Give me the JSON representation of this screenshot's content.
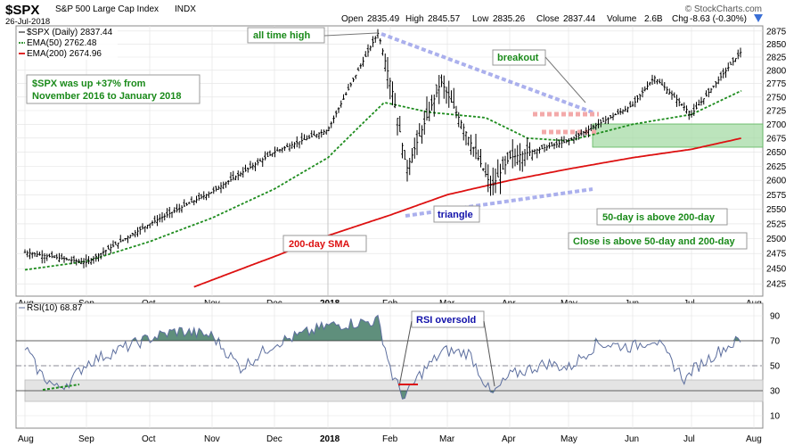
{
  "header": {
    "symbol": "$SPX",
    "name": "S&P 500 Large Cap Index",
    "exchange": "INDX",
    "date": "26-Jul-2018",
    "open_label": "Open",
    "open": "2835.49",
    "high_label": "High",
    "high": "2845.57",
    "low_label": "Low",
    "low": "2835.26",
    "close_label": "Close",
    "close": "2837.44",
    "volume_label": "Volume",
    "volume": "2.6B",
    "chg_label": "Chg",
    "chg": "-8.63 (-0.30%)",
    "watermark": "© StockCharts.com"
  },
  "legend": {
    "price": "$SPX (Daily) 2837.44",
    "ema50": "EMA(50) 2762.48",
    "ema200": "EMA(200) 2674.96",
    "rsi": "RSI(10) 68.87"
  },
  "annotations": {
    "all_time_high": "all time high",
    "summary": "$SPX was up +37% from November 2016 to January 2018",
    "breakout": "breakout",
    "triangle": "triangle",
    "sma200": "200-day SMA",
    "above200": "50-day is above 200-day",
    "close_above": "Close is above 50-day and 200-day",
    "rsi_oversold": "RSI oversold"
  },
  "colors": {
    "price": "#000000",
    "ema50": "#1e8c1e",
    "ema200": "#dd1111",
    "rsi_line": "#5c6e9e",
    "rsi_fill": "#5f8f7c",
    "triangle_line": "#9aa0e6",
    "breakout_box": "#f3a9a9",
    "zone": "#9fd89f",
    "annotation_green": "#1a8a1a",
    "annotation_blue": "#1111aa",
    "annotation_red": "#dd1111"
  },
  "chart_data": [
    {
      "type": "ohlc",
      "x_labels": [
        "Aug",
        "Sep",
        "Oct",
        "Nov",
        "Dec",
        "2018",
        "Feb",
        "Mar",
        "Apr",
        "May",
        "Jun",
        "Jul",
        "Aug"
      ],
      "y_ticks": [
        2425,
        2450,
        2475,
        2500,
        2525,
        2550,
        2575,
        2600,
        2625,
        2650,
        2675,
        2700,
        2725,
        2750,
        2775,
        2800,
        2825,
        2850,
        2875
      ],
      "ylim": [
        2405,
        2885
      ],
      "scale": "log",
      "grid": true,
      "series": [
        {
          "name": "$SPX (Daily)",
          "style": "ohlc-bars",
          "anchors_month_close": [
            [
              "Aug",
              2477
            ],
            [
              "Sep",
              2460
            ],
            [
              "Oct",
              2525
            ],
            [
              "Nov",
              2580
            ],
            [
              "Dec",
              2650
            ],
            [
              "2018",
              2690
            ],
            [
              "Jan-26",
              2872
            ],
            [
              "Feb-02",
              2762
            ],
            [
              "Feb-09",
              2619
            ],
            [
              "Feb-26",
              2779
            ],
            [
              "Mar-23",
              2588
            ],
            [
              "Apr",
              2640
            ],
            [
              "May",
              2670
            ],
            [
              "Jun",
              2735
            ],
            [
              "Jun-12",
              2787
            ],
            [
              "Jul",
              2718
            ],
            [
              "Jul-26",
              2837
            ]
          ]
        },
        {
          "name": "EMA(50)",
          "style": "dotted",
          "anchors": [
            [
              "Aug",
              2448
            ],
            [
              "Sep",
              2462
            ],
            [
              "Oct",
              2495
            ],
            [
              "Nov",
              2535
            ],
            [
              "Dec",
              2585
            ],
            [
              "2018",
              2640
            ],
            [
              "Jan-29",
              2740
            ],
            [
              "Feb-20",
              2722
            ],
            [
              "Mar-20",
              2712
            ],
            [
              "Apr-10",
              2675
            ],
            [
              "May",
              2670
            ],
            [
              "Jun",
              2700
            ],
            [
              "Jul",
              2718
            ],
            [
              "Jul-26",
              2762
            ]
          ]
        },
        {
          "name": "EMA(200)",
          "style": "solid",
          "anchors": [
            [
              "Oct-23",
              2420
            ],
            [
              "Dec",
              2470
            ],
            [
              "2018",
              2505
            ],
            [
              "Feb",
              2540
            ],
            [
              "Mar",
              2575
            ],
            [
              "Apr",
              2600
            ],
            [
              "May",
              2620
            ],
            [
              "Jun",
              2640
            ],
            [
              "Jul",
              2655
            ],
            [
              "Jul-26",
              2675
            ]
          ]
        }
      ]
    },
    {
      "type": "line",
      "title": "RSI(10) 68.87",
      "y_ticks": [
        10,
        30,
        50,
        70,
        90
      ],
      "ylim": [
        0,
        100
      ],
      "overbought": 70,
      "oversold": 30,
      "midline": 50,
      "series": [
        {
          "name": "RSI(10)",
          "anchors": [
            [
              "Aug",
              65
            ],
            [
              "Aug-08",
              45
            ],
            [
              "Aug-17",
              32
            ],
            [
              "Aug-24",
              38
            ],
            [
              "Sep",
              52
            ],
            [
              "Sep-15",
              62
            ],
            [
              "Oct",
              72
            ],
            [
              "Oct-15",
              78
            ],
            [
              "Nov",
              74
            ],
            [
              "Nov-15",
              48
            ],
            [
              "Dec",
              68
            ],
            [
              "Dec-15",
              74
            ],
            [
              "2018",
              82
            ],
            [
              "Jan-26",
              86
            ],
            [
              "Feb-02",
              42
            ],
            [
              "Feb-08",
              24
            ],
            [
              "Feb-15",
              42
            ],
            [
              "Feb-27",
              62
            ],
            [
              "Mar-12",
              60
            ],
            [
              "Mar-23",
              26
            ],
            [
              "Apr",
              42
            ],
            [
              "Apr-20",
              52
            ],
            [
              "May",
              48
            ],
            [
              "May-15",
              68
            ],
            [
              "Jun",
              65
            ],
            [
              "Jun-12",
              72
            ],
            [
              "Jun-28",
              38
            ],
            [
              "Jul",
              46
            ],
            [
              "Jul-15",
              62
            ],
            [
              "Jul-24",
              70
            ],
            [
              "Jul-26",
              69
            ]
          ]
        }
      ]
    }
  ]
}
